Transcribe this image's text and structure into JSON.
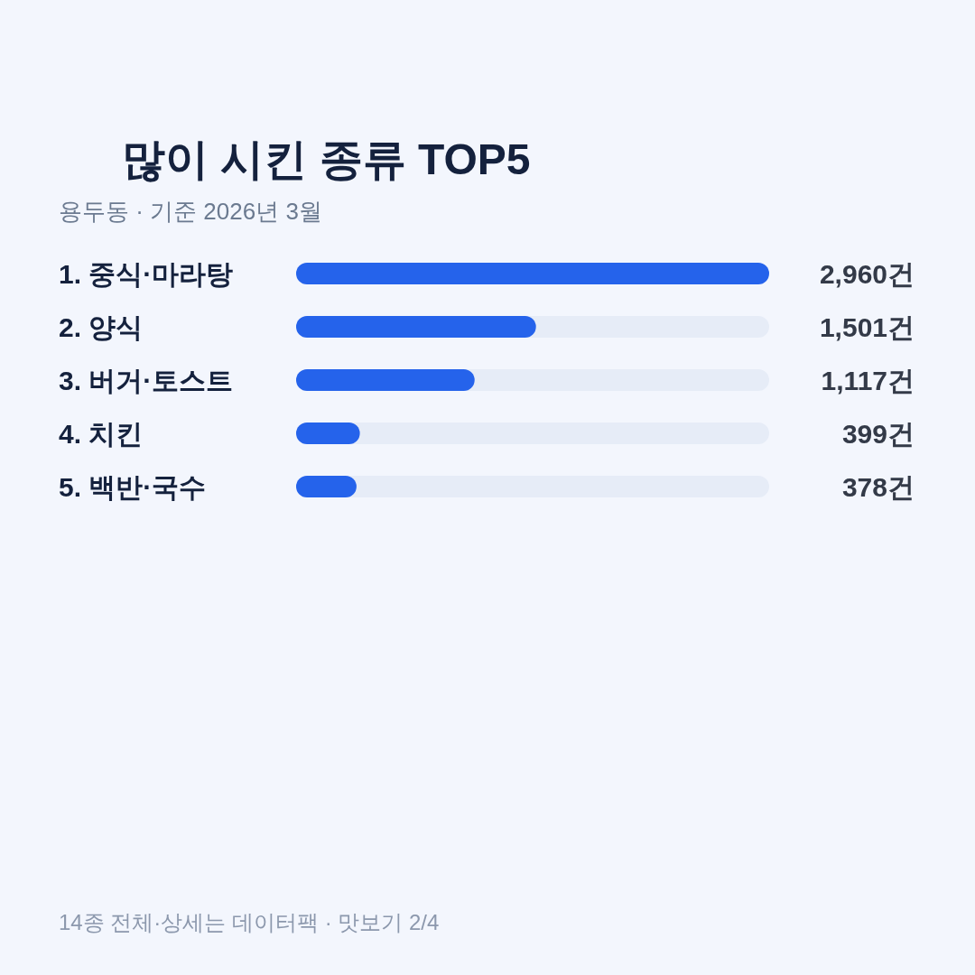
{
  "chart_data": {
    "type": "bar",
    "orientation": "horizontal",
    "title": "많이 시킨 종류 TOP5",
    "subtitle": "용두동 · 기준 2026년 3월",
    "categories": [
      "1. 중식·마라탕",
      "2. 양식",
      "3. 버거·토스트",
      "4. 치킨",
      "5. 백반·국수"
    ],
    "values": [
      2960,
      1501,
      1117,
      399,
      378
    ],
    "value_labels": [
      "2,960건",
      "1,501건",
      "1,117건",
      "399건",
      "378건"
    ],
    "color": "#2563eb",
    "xlim": [
      0,
      2960
    ],
    "annotations": [
      "14종 전체·상세는 데이터팩 · 맛보기 2/4"
    ]
  }
}
